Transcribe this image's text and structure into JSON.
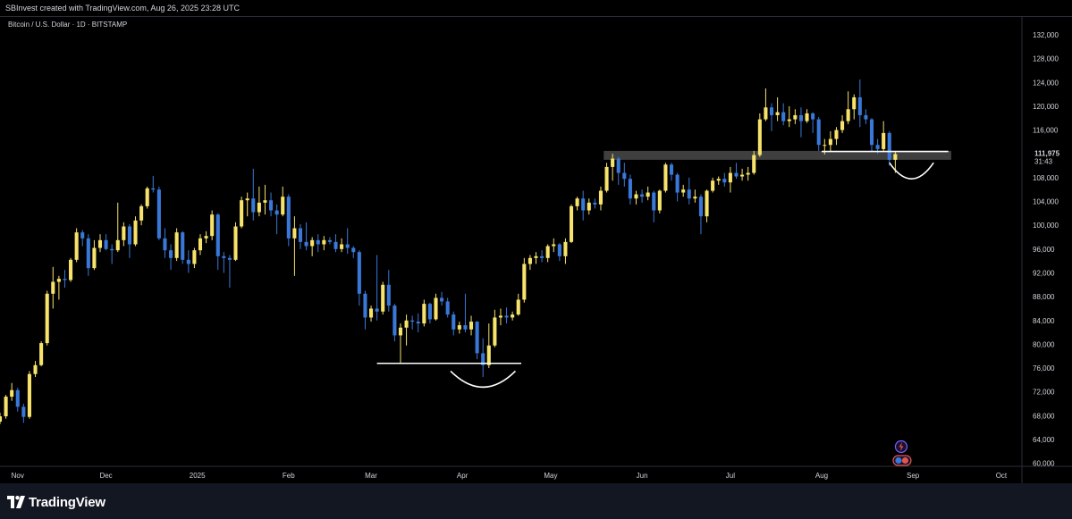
{
  "header": {
    "attribution": "SBInvest created with TradingView.com, Aug 26, 2025 23:28 UTC"
  },
  "footer": {
    "brand": "TradingView",
    "logo_icon": "tradingview-logo-icon"
  },
  "colors": {
    "up": "#f7e26b",
    "down": "#3a78d8",
    "background": "#000000",
    "zone": "#4a4a4a",
    "line": "#ffffff",
    "last_price_bg": "#000000"
  },
  "chart_data": {
    "type": "candlestick",
    "symbol_label": "Bitcoin / U.S. Dollar · 1D · BITSTAMP",
    "x_ticks": [
      {
        "label": "Nov",
        "date": "2024-11-01"
      },
      {
        "label": "Dec",
        "date": "2024-12-01"
      },
      {
        "label": "2025",
        "date": "2025-01-01"
      },
      {
        "label": "Feb",
        "date": "2025-02-01"
      },
      {
        "label": "Mar",
        "date": "2025-03-01"
      },
      {
        "label": "Apr",
        "date": "2025-04-01"
      },
      {
        "label": "May",
        "date": "2025-05-01"
      },
      {
        "label": "Jun",
        "date": "2025-06-01"
      },
      {
        "label": "Jul",
        "date": "2025-07-01"
      },
      {
        "label": "Aug",
        "date": "2025-08-01"
      },
      {
        "label": "Sep",
        "date": "2025-09-01"
      },
      {
        "label": "Oct",
        "date": "2025-10-01"
      }
    ],
    "y_ticks": [
      "132,000",
      "128,000",
      "124,000",
      "120,000",
      "116,000",
      "112,000",
      "108,000",
      "104,000",
      "100,000",
      "96,000",
      "92,000",
      "88,000",
      "84,000",
      "80,000",
      "76,000",
      "72,000",
      "68,000",
      "64,000",
      "60,000"
    ],
    "ylim": [
      59500,
      135000
    ],
    "xlim": [
      "2024-10-26",
      "2025-10-08"
    ],
    "last_price": {
      "value": "111,975",
      "countdown": "31:43",
      "num": 111975
    },
    "ohlc": [
      [
        "2024-10-26",
        67000,
        68500,
        66600,
        67900
      ],
      [
        "2024-10-28",
        67900,
        71500,
        67500,
        71200
      ],
      [
        "2024-10-30",
        71200,
        73500,
        70500,
        72300
      ],
      [
        "2024-11-01",
        72300,
        72700,
        68700,
        69500
      ],
      [
        "2024-11-03",
        69500,
        70000,
        66800,
        67800
      ],
      [
        "2024-11-05",
        67800,
        75500,
        67500,
        75000
      ],
      [
        "2024-11-07",
        75000,
        77200,
        74500,
        76500
      ],
      [
        "2024-11-09",
        76500,
        80500,
        76300,
        80200
      ],
      [
        "2024-11-11",
        80200,
        89000,
        79800,
        88500
      ],
      [
        "2024-11-13",
        88500,
        93000,
        86000,
        90500
      ],
      [
        "2024-11-15",
        90500,
        91500,
        87500,
        91000
      ],
      [
        "2024-11-17",
        91000,
        92500,
        89500,
        90800
      ],
      [
        "2024-11-19",
        90800,
        94500,
        90500,
        94200
      ],
      [
        "2024-11-21",
        94200,
        99500,
        93800,
        98800
      ],
      [
        "2024-11-23",
        98800,
        99200,
        96500,
        97800
      ],
      [
        "2024-11-25",
        97800,
        98500,
        91500,
        92800
      ],
      [
        "2024-11-27",
        92800,
        97500,
        92500,
        96200
      ],
      [
        "2024-11-29",
        96200,
        98500,
        95500,
        97500
      ],
      [
        "2024-12-01",
        97500,
        98500,
        95800,
        96000
      ],
      [
        "2024-12-03",
        96000,
        96800,
        93500,
        95800
      ],
      [
        "2024-12-05",
        95800,
        103800,
        95500,
        97500
      ],
      [
        "2024-12-07",
        97500,
        100500,
        96500,
        99800
      ],
      [
        "2024-12-09",
        99800,
        100200,
        94500,
        96800
      ],
      [
        "2024-12-11",
        96800,
        101500,
        96500,
        100800
      ],
      [
        "2024-12-13",
        100800,
        103500,
        100000,
        103200
      ],
      [
        "2024-12-15",
        103200,
        106500,
        102800,
        106200
      ],
      [
        "2024-12-17",
        106200,
        108300,
        105500,
        106000
      ],
      [
        "2024-12-19",
        106000,
        106500,
        97500,
        97800
      ],
      [
        "2024-12-21",
        97800,
        99500,
        94500,
        95800
      ],
      [
        "2024-12-23",
        95800,
        96800,
        92500,
        94500
      ],
      [
        "2024-12-25",
        94500,
        99500,
        94000,
        98800
      ],
      [
        "2024-12-27",
        98800,
        99000,
        93500,
        94200
      ],
      [
        "2024-12-29",
        94200,
        95800,
        92000,
        93500
      ],
      [
        "2024-12-31",
        93500,
        96200,
        92800,
        95800
      ],
      [
        "2025-01-02",
        95800,
        98500,
        95000,
        97800
      ],
      [
        "2025-01-04",
        97800,
        99000,
        97000,
        98200
      ],
      [
        "2025-01-06",
        98200,
        102500,
        97500,
        101800
      ],
      [
        "2025-01-08",
        101800,
        102000,
        92500,
        94800
      ],
      [
        "2025-01-10",
        94800,
        95500,
        92000,
        94500
      ],
      [
        "2025-01-12",
        94500,
        95000,
        89500,
        94200
      ],
      [
        "2025-01-14",
        94200,
        100500,
        94000,
        99800
      ],
      [
        "2025-01-16",
        99800,
        104800,
        99500,
        104200
      ],
      [
        "2025-01-18",
        104200,
        105500,
        101500,
        104500
      ],
      [
        "2025-01-20",
        104500,
        109500,
        100800,
        102200
      ],
      [
        "2025-01-22",
        102200,
        106500,
        101500,
        103800
      ],
      [
        "2025-01-24",
        103800,
        106800,
        101800,
        104200
      ],
      [
        "2025-01-26",
        104200,
        105500,
        101500,
        102500
      ],
      [
        "2025-01-28",
        102500,
        103500,
        98500,
        101800
      ],
      [
        "2025-01-30",
        101800,
        106500,
        101500,
        104800
      ],
      [
        "2025-02-01",
        104800,
        105200,
        96500,
        97800
      ],
      [
        "2025-02-03",
        97800,
        101500,
        91500,
        99500
      ],
      [
        "2025-02-05",
        99500,
        100200,
        96000,
        97200
      ],
      [
        "2025-02-07",
        97200,
        100500,
        95800,
        96500
      ],
      [
        "2025-02-09",
        96500,
        98000,
        94800,
        97500
      ],
      [
        "2025-02-11",
        97500,
        98500,
        95500,
        96800
      ],
      [
        "2025-02-13",
        96800,
        98200,
        95800,
        97500
      ],
      [
        "2025-02-15",
        97500,
        98000,
        96800,
        97200
      ],
      [
        "2025-02-17",
        97200,
        98500,
        95500,
        96000
      ],
      [
        "2025-02-19",
        96000,
        97800,
        95500,
        96800
      ],
      [
        "2025-02-21",
        96800,
        99500,
        95200,
        96200
      ],
      [
        "2025-02-23",
        96200,
        96500,
        94500,
        95500
      ],
      [
        "2025-02-25",
        95500,
        95800,
        86500,
        88500
      ],
      [
        "2025-02-27",
        88500,
        89000,
        82500,
        84500
      ],
      [
        "2025-03-01",
        84500,
        86500,
        83800,
        86000
      ],
      [
        "2025-03-03",
        86000,
        95000,
        84000,
        85500
      ],
      [
        "2025-03-05",
        85500,
        90500,
        85000,
        90000
      ],
      [
        "2025-03-07",
        90000,
        92500,
        85500,
        86500
      ],
      [
        "2025-03-09",
        86500,
        86800,
        80500,
        81500
      ],
      [
        "2025-03-11",
        81500,
        83500,
        76800,
        82800
      ],
      [
        "2025-03-13",
        82800,
        85000,
        79800,
        84000
      ],
      [
        "2025-03-15",
        84000,
        84800,
        82500,
        83800
      ],
      [
        "2025-03-17",
        83800,
        85200,
        82000,
        83500
      ],
      [
        "2025-03-19",
        83500,
        87500,
        83000,
        86800
      ],
      [
        "2025-03-21",
        86800,
        87000,
        83500,
        84200
      ],
      [
        "2025-03-23",
        84200,
        88500,
        84000,
        87800
      ],
      [
        "2025-03-25",
        87800,
        88800,
        86500,
        87200
      ],
      [
        "2025-03-27",
        87200,
        87800,
        84500,
        85000
      ],
      [
        "2025-03-29",
        85000,
        85500,
        81500,
        82500
      ],
      [
        "2025-03-31",
        82500,
        83800,
        81800,
        83200
      ],
      [
        "2025-04-02",
        83200,
        88500,
        82000,
        82500
      ],
      [
        "2025-04-04",
        82500,
        84800,
        81500,
        83800
      ],
      [
        "2025-04-06",
        83800,
        83900,
        77500,
        78500
      ],
      [
        "2025-04-08",
        78500,
        81000,
        74500,
        76500
      ],
      [
        "2025-04-10",
        76500,
        83500,
        76000,
        79800
      ],
      [
        "2025-04-12",
        79800,
        85800,
        79500,
        84500
      ],
      [
        "2025-04-14",
        84500,
        86000,
        83200,
        84800
      ],
      [
        "2025-04-16",
        84800,
        86200,
        83500,
        84500
      ],
      [
        "2025-04-18",
        84500,
        85500,
        84000,
        85000
      ],
      [
        "2025-04-20",
        85000,
        88500,
        84800,
        87500
      ],
      [
        "2025-04-22",
        87500,
        94500,
        87000,
        93500
      ],
      [
        "2025-04-24",
        93500,
        95000,
        92500,
        94500
      ],
      [
        "2025-04-26",
        94500,
        95500,
        93500,
        94800
      ],
      [
        "2025-04-28",
        94800,
        95800,
        93800,
        94500
      ],
      [
        "2025-04-30",
        94500,
        96800,
        93800,
        96500
      ],
      [
        "2025-05-02",
        96500,
        97800,
        95500,
        96800
      ],
      [
        "2025-05-04",
        96800,
        97000,
        94000,
        94800
      ],
      [
        "2025-05-06",
        94800,
        97800,
        93500,
        97200
      ],
      [
        "2025-05-08",
        97200,
        103500,
        97000,
        103200
      ],
      [
        "2025-05-10",
        103200,
        104800,
        102500,
        104500
      ],
      [
        "2025-05-12",
        104500,
        105800,
        100800,
        102500
      ],
      [
        "2025-05-14",
        102500,
        104500,
        101800,
        103800
      ],
      [
        "2025-05-16",
        103800,
        104500,
        102800,
        103500
      ],
      [
        "2025-05-18",
        103500,
        106500,
        102500,
        105800
      ],
      [
        "2025-05-20",
        105800,
        110500,
        105500,
        109800
      ],
      [
        "2025-05-22",
        109800,
        112000,
        107500,
        111200
      ],
      [
        "2025-05-24",
        111200,
        111500,
        106800,
        108800
      ],
      [
        "2025-05-26",
        108800,
        110500,
        106500,
        107800
      ],
      [
        "2025-05-28",
        107800,
        108500,
        103500,
        104500
      ],
      [
        "2025-05-30",
        104500,
        105800,
        103500,
        105200
      ],
      [
        "2025-06-01",
        105200,
        106000,
        103800,
        104800
      ],
      [
        "2025-06-03",
        104800,
        106500,
        104200,
        105500
      ],
      [
        "2025-06-05",
        105500,
        105800,
        100500,
        102500
      ],
      [
        "2025-06-07",
        102500,
        106000,
        102000,
        105800
      ],
      [
        "2025-06-09",
        105800,
        110500,
        105500,
        110200
      ],
      [
        "2025-06-11",
        110200,
        110500,
        107500,
        108500
      ],
      [
        "2025-06-13",
        108500,
        108800,
        104000,
        105500
      ],
      [
        "2025-06-15",
        105500,
        106800,
        104800,
        106000
      ],
      [
        "2025-06-17",
        106000,
        108000,
        103500,
        104500
      ],
      [
        "2025-06-19",
        104500,
        106000,
        103800,
        104800
      ],
      [
        "2025-06-21",
        104800,
        105200,
        98500,
        101500
      ],
      [
        "2025-06-23",
        101500,
        106000,
        100500,
        105800
      ],
      [
        "2025-06-25",
        105800,
        108000,
        105500,
        107500
      ],
      [
        "2025-06-27",
        107500,
        108200,
        106800,
        107800
      ],
      [
        "2025-06-29",
        107800,
        108800,
        106500,
        107200
      ],
      [
        "2025-07-01",
        107200,
        109800,
        105500,
        108800
      ],
      [
        "2025-07-03",
        108800,
        110500,
        107800,
        108200
      ],
      [
        "2025-07-05",
        108200,
        109500,
        107500,
        108500
      ],
      [
        "2025-07-07",
        108500,
        109800,
        107500,
        108800
      ],
      [
        "2025-07-09",
        108800,
        112500,
        108500,
        111800
      ],
      [
        "2025-07-11",
        111800,
        118800,
        111500,
        117800
      ],
      [
        "2025-07-13",
        117800,
        123000,
        117500,
        119800
      ],
      [
        "2025-07-15",
        119800,
        120500,
        115800,
        118500
      ],
      [
        "2025-07-17",
        118500,
        121500,
        117500,
        119000
      ],
      [
        "2025-07-19",
        119000,
        120500,
        116800,
        117500
      ],
      [
        "2025-07-21",
        117500,
        120000,
        116500,
        117800
      ],
      [
        "2025-07-23",
        117800,
        119500,
        117000,
        118500
      ],
      [
        "2025-07-25",
        118500,
        119800,
        114800,
        117500
      ],
      [
        "2025-07-27",
        117500,
        119500,
        117200,
        118800
      ],
      [
        "2025-07-29",
        118800,
        119000,
        115500,
        117800
      ],
      [
        "2025-07-31",
        117800,
        118200,
        112500,
        113500
      ],
      [
        "2025-08-02",
        113500,
        114500,
        111900,
        113500
      ],
      [
        "2025-08-04",
        113500,
        115800,
        112500,
        114500
      ],
      [
        "2025-08-06",
        114500,
        116500,
        113500,
        116000
      ],
      [
        "2025-08-08",
        116000,
        118500,
        115500,
        117500
      ],
      [
        "2025-08-10",
        117500,
        122500,
        117000,
        119500
      ],
      [
        "2025-08-12",
        119500,
        122000,
        117800,
        121500
      ],
      [
        "2025-08-14",
        121500,
        124500,
        116500,
        118500
      ],
      [
        "2025-08-16",
        118500,
        119500,
        117000,
        117800
      ],
      [
        "2025-08-18",
        117800,
        118000,
        112500,
        113500
      ],
      [
        "2025-08-20",
        113500,
        114500,
        112000,
        112800
      ],
      [
        "2025-08-22",
        112800,
        117500,
        112500,
        115500
      ],
      [
        "2025-08-24",
        115500,
        115800,
        110000,
        111000
      ],
      [
        "2025-08-26",
        111000,
        112500,
        108800,
        111975
      ]
    ],
    "annotations": {
      "resistance_zone": {
        "from_date": "2025-05-19",
        "to_date": "2025-09-14",
        "y_low": 111000,
        "y_high": 112500
      },
      "lines": [
        {
          "from_date": "2025-03-03",
          "to_date": "2025-04-21",
          "y": 76800
        },
        {
          "from_date": "2025-08-01",
          "to_date": "2025-09-13",
          "y": 112400
        }
      ],
      "arcs": [
        {
          "from_date": "2025-03-28",
          "to_date": "2025-04-19",
          "y_top": 75500,
          "y_bottom": 72800
        },
        {
          "from_date": "2025-08-24",
          "to_date": "2025-09-08",
          "y_top": 110500,
          "y_bottom": 107800
        }
      ]
    }
  }
}
